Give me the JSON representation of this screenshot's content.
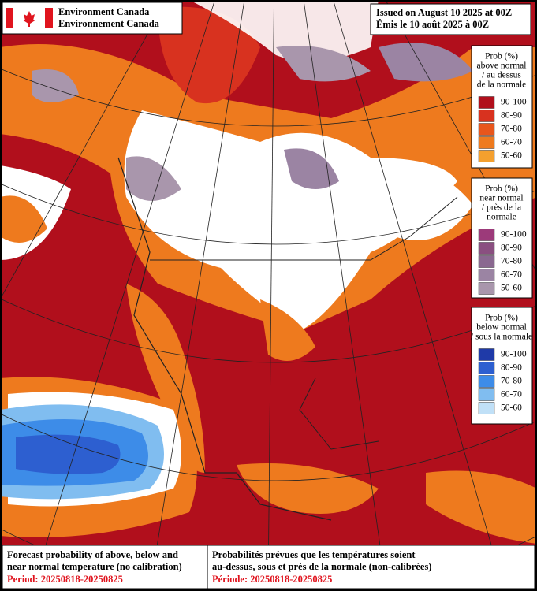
{
  "header": {
    "org_en": "Environment Canada",
    "org_fr": "Environnement Canada",
    "issued_en": "Issued on August 10 2025 at 00Z",
    "issued_fr": "Émis le 10 août 2025 à 00Z"
  },
  "legend": [
    {
      "title": [
        "Prob (%)",
        "above normal",
        "/ au dessus",
        "de la normale"
      ],
      "items": [
        {
          "label": "90-100",
          "color": "#b10f1c"
        },
        {
          "label": "80-90",
          "color": "#d8321f"
        },
        {
          "label": "70-80",
          "color": "#e8561c"
        },
        {
          "label": "60-70",
          "color": "#ee7a1e"
        },
        {
          "label": "50-60",
          "color": "#f4a02e"
        }
      ]
    },
    {
      "title": [
        "Prob (%)",
        "near normal",
        "/ près de la",
        "normale"
      ],
      "items": [
        {
          "label": "90-100",
          "color": "#9c3a7a"
        },
        {
          "label": "80-90",
          "color": "#8a4f80"
        },
        {
          "label": "70-80",
          "color": "#8a6890"
        },
        {
          "label": "60-70",
          "color": "#9b84a3"
        },
        {
          "label": "50-60",
          "color": "#a996ac"
        }
      ]
    },
    {
      "title": [
        "Prob (%)",
        "below normal",
        "/ sous la normale"
      ],
      "items": [
        {
          "label": "90-100",
          "color": "#1f3aa8"
        },
        {
          "label": "80-90",
          "color": "#2d5fd0"
        },
        {
          "label": "70-80",
          "color": "#3d8ce8"
        },
        {
          "label": "60-70",
          "color": "#80bdf0"
        },
        {
          "label": "50-60",
          "color": "#c0e0f7"
        }
      ]
    }
  ],
  "footer": {
    "en": [
      "Forecast probability of above, below and",
      "near normal temperature (no calibration)"
    ],
    "period_en": "Period: 20250818-20250825",
    "fr": [
      "Probabilités prévues que les températures soient",
      "au-dessus, sous et près de la normale (non-calibrées)"
    ],
    "period_fr": "Période: 20250818-20250825"
  }
}
